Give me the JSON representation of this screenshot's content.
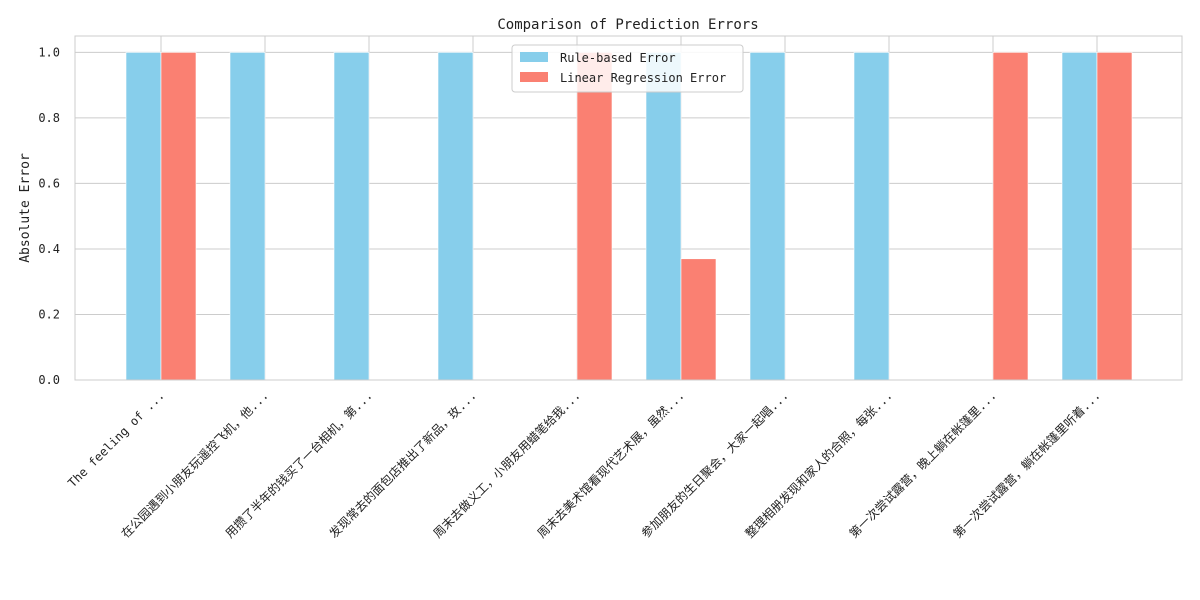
{
  "chart_data": {
    "type": "bar",
    "title": "Comparison of Prediction Errors",
    "xlabel": "",
    "ylabel": "Absolute Error",
    "ylim": [
      0,
      1.05
    ],
    "yticks": [
      "0.0",
      "0.2",
      "0.4",
      "0.6",
      "0.8",
      "1.0"
    ],
    "grid": true,
    "legend_position": "top-center",
    "categories": [
      "The feeling of ...",
      "在公园遇到小朋友玩遥控飞机，他...",
      "用攒了半年的钱买了一台相机，第...",
      "发现常去的面包店推出了新品，玫...",
      "周末去做义工，小朋友用蜡笔给我...",
      "周末去美术馆看现代艺术展，虽然...",
      "参加朋友的生日聚会，大家一起唱...",
      "整理相册发现和家人的合照，每张...",
      "第一次尝试露营，晚上躺在帐篷里...",
      "第一次尝试露营，躺在帐篷里听着..."
    ],
    "series": [
      {
        "name": "Rule-based Error",
        "color": "#87CEEB",
        "values": [
          1.0,
          1.0,
          1.0,
          1.0,
          0.0,
          1.0,
          1.0,
          1.0,
          0.0,
          1.0
        ]
      },
      {
        "name": "Linear Regression Error",
        "color": "#FA8072",
        "values": [
          1.0,
          0.0,
          0.0,
          0.0,
          1.0,
          0.37,
          0.0,
          0.0,
          1.0,
          1.0
        ]
      }
    ]
  }
}
